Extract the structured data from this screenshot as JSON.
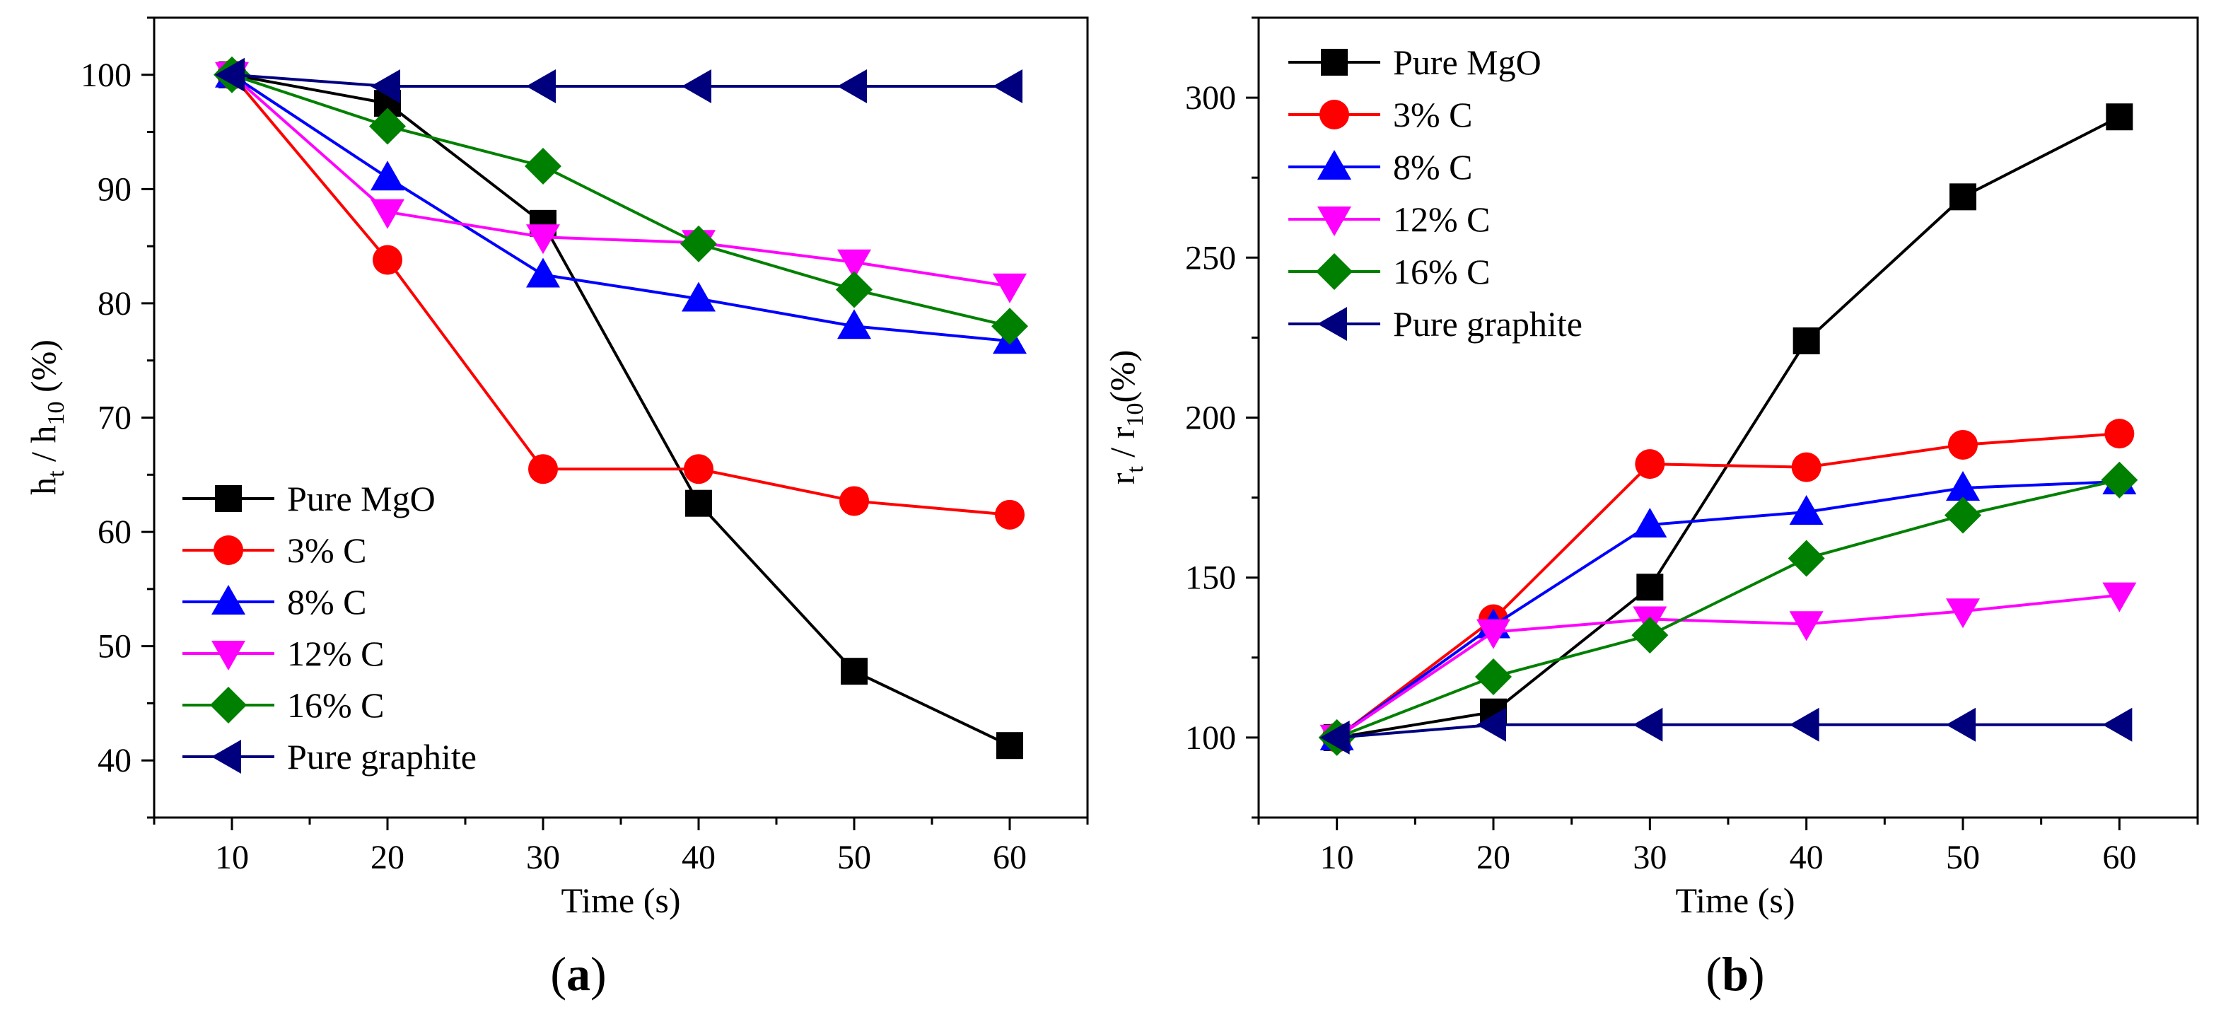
{
  "colors": {
    "Pure MgO": "#000000",
    "3% C": "#ff0000",
    "8% C": "#0000ff",
    "12% C": "#ff00ff",
    "16% C": "#008000",
    "Pure graphite": "#00007f"
  },
  "chart_data": [
    {
      "type": "line",
      "panel": "a",
      "panel_label": {
        "open": "(",
        "letter": "a",
        "close": ")"
      },
      "xlabel": "Time (s)",
      "ylabel": {
        "main1": "h",
        "sub1": "t",
        "mid": " / h",
        "sub2": "10",
        "end": " (%)"
      },
      "x": [
        10,
        20,
        30,
        40,
        50,
        60
      ],
      "xlim": [
        5,
        65
      ],
      "ylim": [
        35,
        105
      ],
      "xticks": [
        10,
        20,
        30,
        40,
        50,
        60
      ],
      "yticks": [
        40,
        50,
        60,
        70,
        80,
        90,
        100
      ],
      "legend_position": "bottom-left",
      "series": [
        {
          "name": "Pure MgO",
          "marker": "square",
          "values": [
            100,
            97.5,
            87,
            62.5,
            47.8,
            41.3
          ]
        },
        {
          "name": "3% C",
          "marker": "circle",
          "values": [
            100,
            83.8,
            65.5,
            65.5,
            62.7,
            61.5
          ]
        },
        {
          "name": "8% C",
          "marker": "triangle-up",
          "values": [
            100,
            91,
            82.5,
            80.4,
            78,
            76.7
          ]
        },
        {
          "name": "12% C",
          "marker": "triangle-down",
          "values": [
            100,
            88,
            85.8,
            85.3,
            83.6,
            81.5
          ]
        },
        {
          "name": "16% C",
          "marker": "diamond",
          "values": [
            100,
            95.5,
            92,
            85.2,
            81.2,
            78
          ]
        },
        {
          "name": "Pure graphite",
          "marker": "triangle-left",
          "values": [
            100,
            99,
            99,
            99,
            99,
            99
          ]
        }
      ]
    },
    {
      "type": "line",
      "panel": "b",
      "panel_label": {
        "open": "(",
        "letter": "b",
        "close": ")"
      },
      "xlabel": "Time (s)",
      "ylabel": {
        "main1": "r",
        "sub1": "t",
        "mid": " / r",
        "sub2": "10",
        "end": "(%)"
      },
      "x": [
        10,
        20,
        30,
        40,
        50,
        60
      ],
      "xlim": [
        5,
        65
      ],
      "ylim": [
        75,
        325
      ],
      "xticks": [
        10,
        20,
        30,
        40,
        50,
        60
      ],
      "yticks": [
        100,
        150,
        200,
        250,
        300
      ],
      "legend_position": "top-left",
      "series": [
        {
          "name": "Pure MgO",
          "marker": "square",
          "values": [
            100,
            108,
            147,
            224,
            269,
            294
          ]
        },
        {
          "name": "3% C",
          "marker": "circle",
          "values": [
            100,
            137,
            185.5,
            184.5,
            191.5,
            195
          ]
        },
        {
          "name": "8% C",
          "marker": "triangle-up",
          "values": [
            100,
            135,
            166.5,
            170.5,
            178,
            180
          ]
        },
        {
          "name": "12% C",
          "marker": "triangle-down",
          "values": [
            100,
            133,
            137,
            135.5,
            139.5,
            144.5
          ]
        },
        {
          "name": "16% C",
          "marker": "diamond",
          "values": [
            100,
            119,
            132,
            156,
            169.5,
            180.5
          ]
        },
        {
          "name": "Pure graphite",
          "marker": "triangle-left",
          "values": [
            100,
            104,
            104,
            104,
            104,
            104
          ]
        }
      ]
    }
  ]
}
